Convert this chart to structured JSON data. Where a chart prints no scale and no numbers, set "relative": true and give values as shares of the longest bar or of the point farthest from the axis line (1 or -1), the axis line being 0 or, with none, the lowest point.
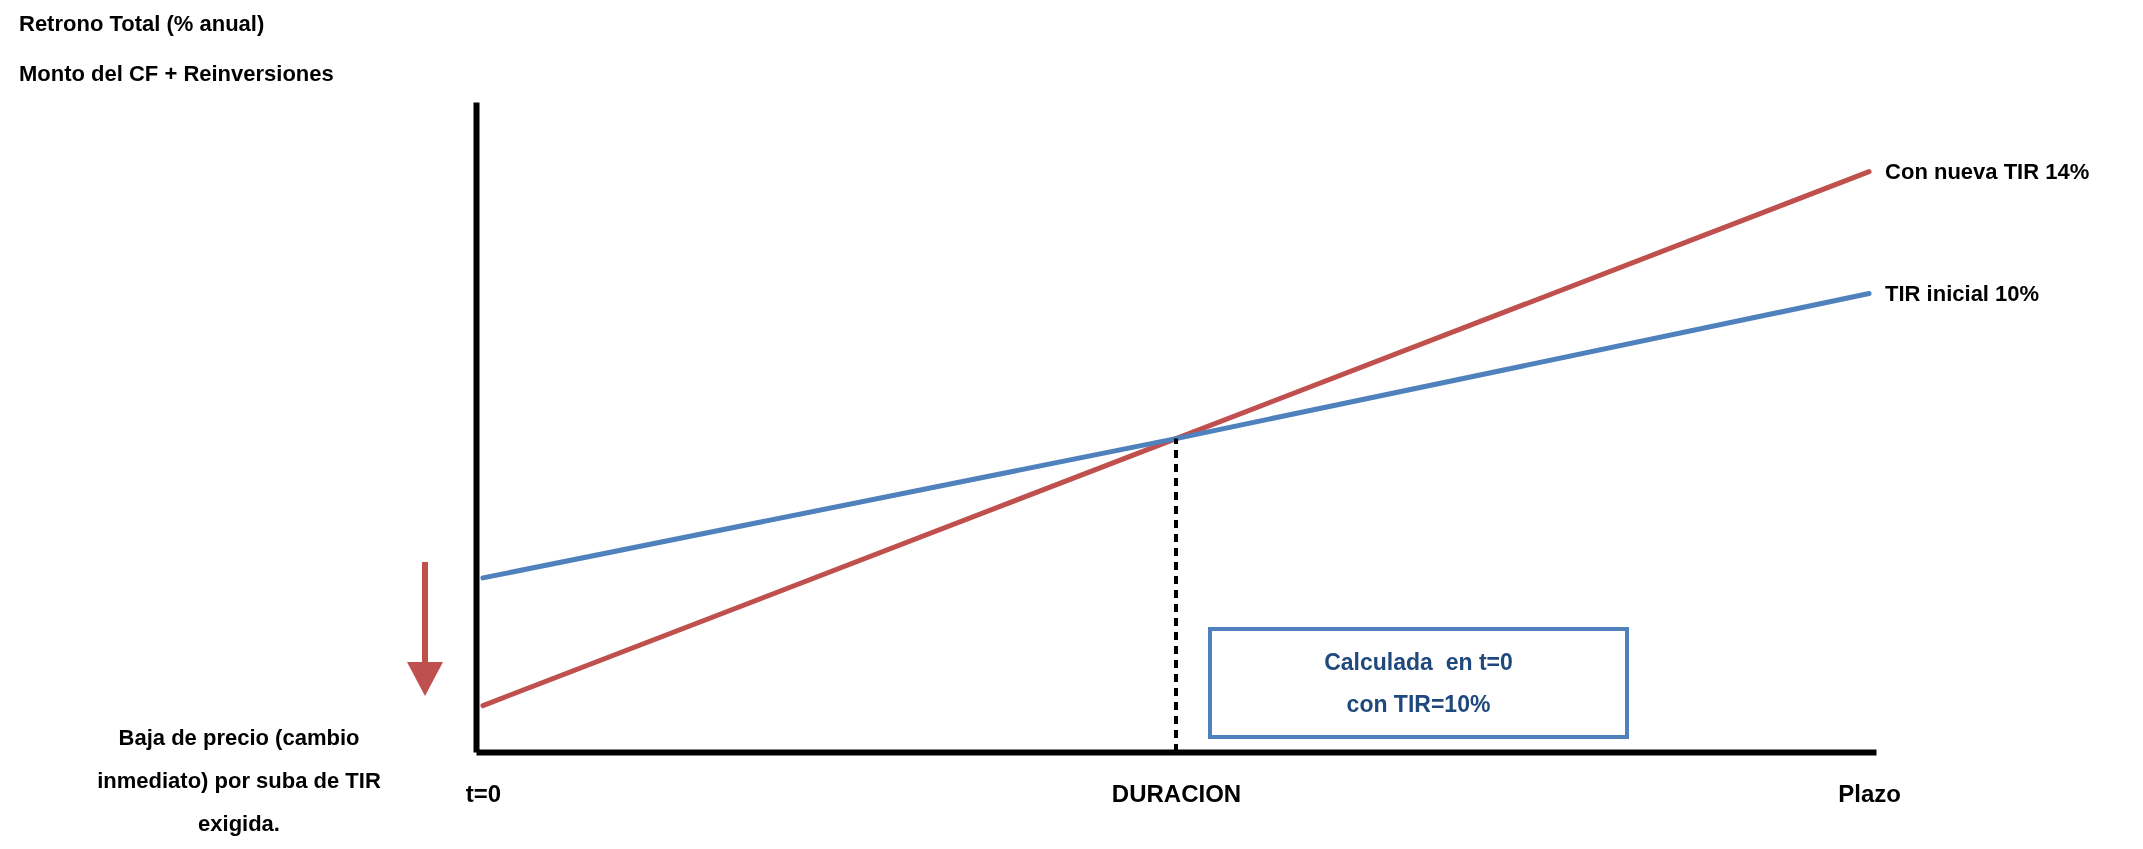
{
  "chart_data": {
    "type": "line",
    "relative": true,
    "categories": [
      "t=0",
      "DURACION",
      "Plazo"
    ],
    "series": [
      {
        "name": "Con nueva TIR 14%",
        "color": "#c0504d",
        "values": [
          0.08,
          0.54,
          1
        ]
      },
      {
        "name": "TIR inicial 10%",
        "color": "#4f81bd",
        "values": [
          0.3,
          0.54,
          0.79
        ]
      }
    ],
    "ref_lines": [
      {
        "axis": "x",
        "value": "DURACION",
        "color": "#000000",
        "line_style": "dashed"
      }
    ],
    "annotations": [
      "Retrono Total (% anual)",
      "Monto del CF + Reinversiones",
      "Calculada  en t=0\ncon TIR=10%",
      "Baja de precio (cambio\ninmediato) por suba de TIR\nexigida."
    ],
    "legend": false,
    "marker": "none",
    "grid": false
  }
}
